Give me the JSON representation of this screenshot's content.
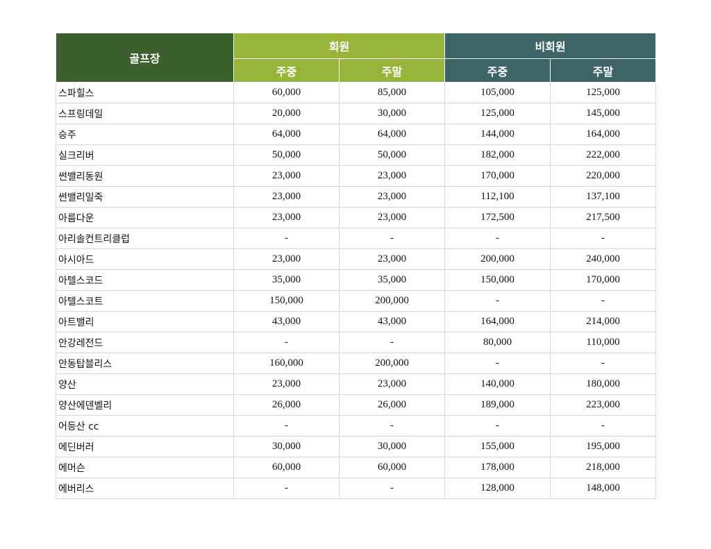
{
  "table": {
    "header": {
      "course": "골프장",
      "member": "회원",
      "nonmember": "비회원",
      "weekday": "주중",
      "weekend": "주말"
    },
    "rows": [
      {
        "name": "스파힐스",
        "m_weekday": "60,000",
        "m_weekend": "85,000",
        "n_weekday": "105,000",
        "n_weekend": "125,000"
      },
      {
        "name": "스프링데일",
        "m_weekday": "20,000",
        "m_weekend": "30,000",
        "n_weekday": "125,000",
        "n_weekend": "145,000"
      },
      {
        "name": "승주",
        "m_weekday": "64,000",
        "m_weekend": "64,000",
        "n_weekday": "144,000",
        "n_weekend": "164,000"
      },
      {
        "name": "실크리버",
        "m_weekday": "50,000",
        "m_weekend": "50,000",
        "n_weekday": "182,000",
        "n_weekend": "222,000"
      },
      {
        "name": "썬밸리동원",
        "m_weekday": "23,000",
        "m_weekend": "23,000",
        "n_weekday": "170,000",
        "n_weekend": "220,000"
      },
      {
        "name": "썬밸리일죽",
        "m_weekday": "23,000",
        "m_weekend": "23,000",
        "n_weekday": "112,100",
        "n_weekend": "137,100"
      },
      {
        "name": "아름다운",
        "m_weekday": "23,000",
        "m_weekend": "23,000",
        "n_weekday": "172,500",
        "n_weekend": "217,500"
      },
      {
        "name": "아리솔컨트리클럽",
        "m_weekday": "-",
        "m_weekend": "-",
        "n_weekday": "-",
        "n_weekend": "-"
      },
      {
        "name": "아시아드",
        "m_weekday": "23,000",
        "m_weekend": "23,000",
        "n_weekday": "200,000",
        "n_weekend": "240,000"
      },
      {
        "name": "아텔스코드",
        "m_weekday": "35,000",
        "m_weekend": "35,000",
        "n_weekday": "150,000",
        "n_weekend": "170,000"
      },
      {
        "name": "아텔스코트",
        "m_weekday": "150,000",
        "m_weekend": "200,000",
        "n_weekday": "-",
        "n_weekend": "-"
      },
      {
        "name": "아트밸리",
        "m_weekday": "43,000",
        "m_weekend": "43,000",
        "n_weekday": "164,000",
        "n_weekend": "214,000"
      },
      {
        "name": "안강레전드",
        "m_weekday": "-",
        "m_weekend": "-",
        "n_weekday": "80,000",
        "n_weekend": "110,000"
      },
      {
        "name": "안동탑블리스",
        "m_weekday": "160,000",
        "m_weekend": "200,000",
        "n_weekday": "-",
        "n_weekend": "-"
      },
      {
        "name": "양산",
        "m_weekday": "23,000",
        "m_weekend": "23,000",
        "n_weekday": "140,000",
        "n_weekend": "180,000"
      },
      {
        "name": "양산에덴벨리",
        "m_weekday": "26,000",
        "m_weekend": "26,000",
        "n_weekday": "189,000",
        "n_weekend": "223,000"
      },
      {
        "name": "어등산 cc",
        "m_weekday": "-",
        "m_weekend": "-",
        "n_weekday": "-",
        "n_weekend": "-"
      },
      {
        "name": "에딘버러",
        "m_weekday": "30,000",
        "m_weekend": "30,000",
        "n_weekday": "155,000",
        "n_weekend": "195,000"
      },
      {
        "name": "에머슨",
        "m_weekday": "60,000",
        "m_weekend": "60,000",
        "n_weekday": "178,000",
        "n_weekend": "218,000"
      },
      {
        "name": "에버리스",
        "m_weekday": "-",
        "m_weekend": "-",
        "n_weekday": "128,000",
        "n_weekend": "148,000"
      }
    ]
  },
  "colors": {
    "course_header": "#3c602d",
    "member_header": "#98b43a",
    "nonmember_header": "#3d6566",
    "grid_line": "#d7d7d7"
  }
}
